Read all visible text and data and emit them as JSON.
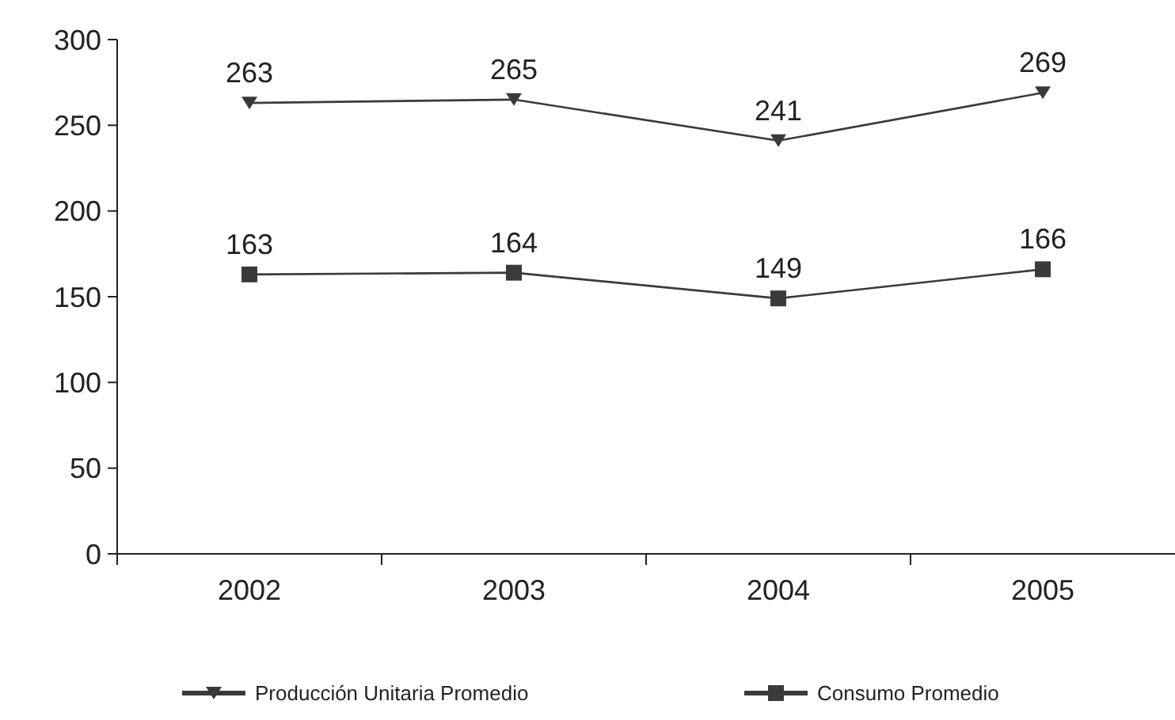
{
  "chart_data": {
    "type": "line",
    "categories": [
      "2002",
      "2003",
      "2004",
      "2005"
    ],
    "series": [
      {
        "name": "Producción Unitaria Promedio",
        "color": "#3a3a3a",
        "marker": "triangle",
        "values": [
          263,
          265,
          241,
          269
        ]
      },
      {
        "name": "Consumo Promedio",
        "color": "#3a3a3a",
        "marker": "square",
        "values": [
          163,
          164,
          149,
          166
        ]
      }
    ],
    "ylim": [
      0,
      300
    ],
    "yticks": [
      0,
      50,
      100,
      150,
      200,
      250,
      300
    ],
    "data_labels": true,
    "legend": "bottom",
    "grid": false
  }
}
